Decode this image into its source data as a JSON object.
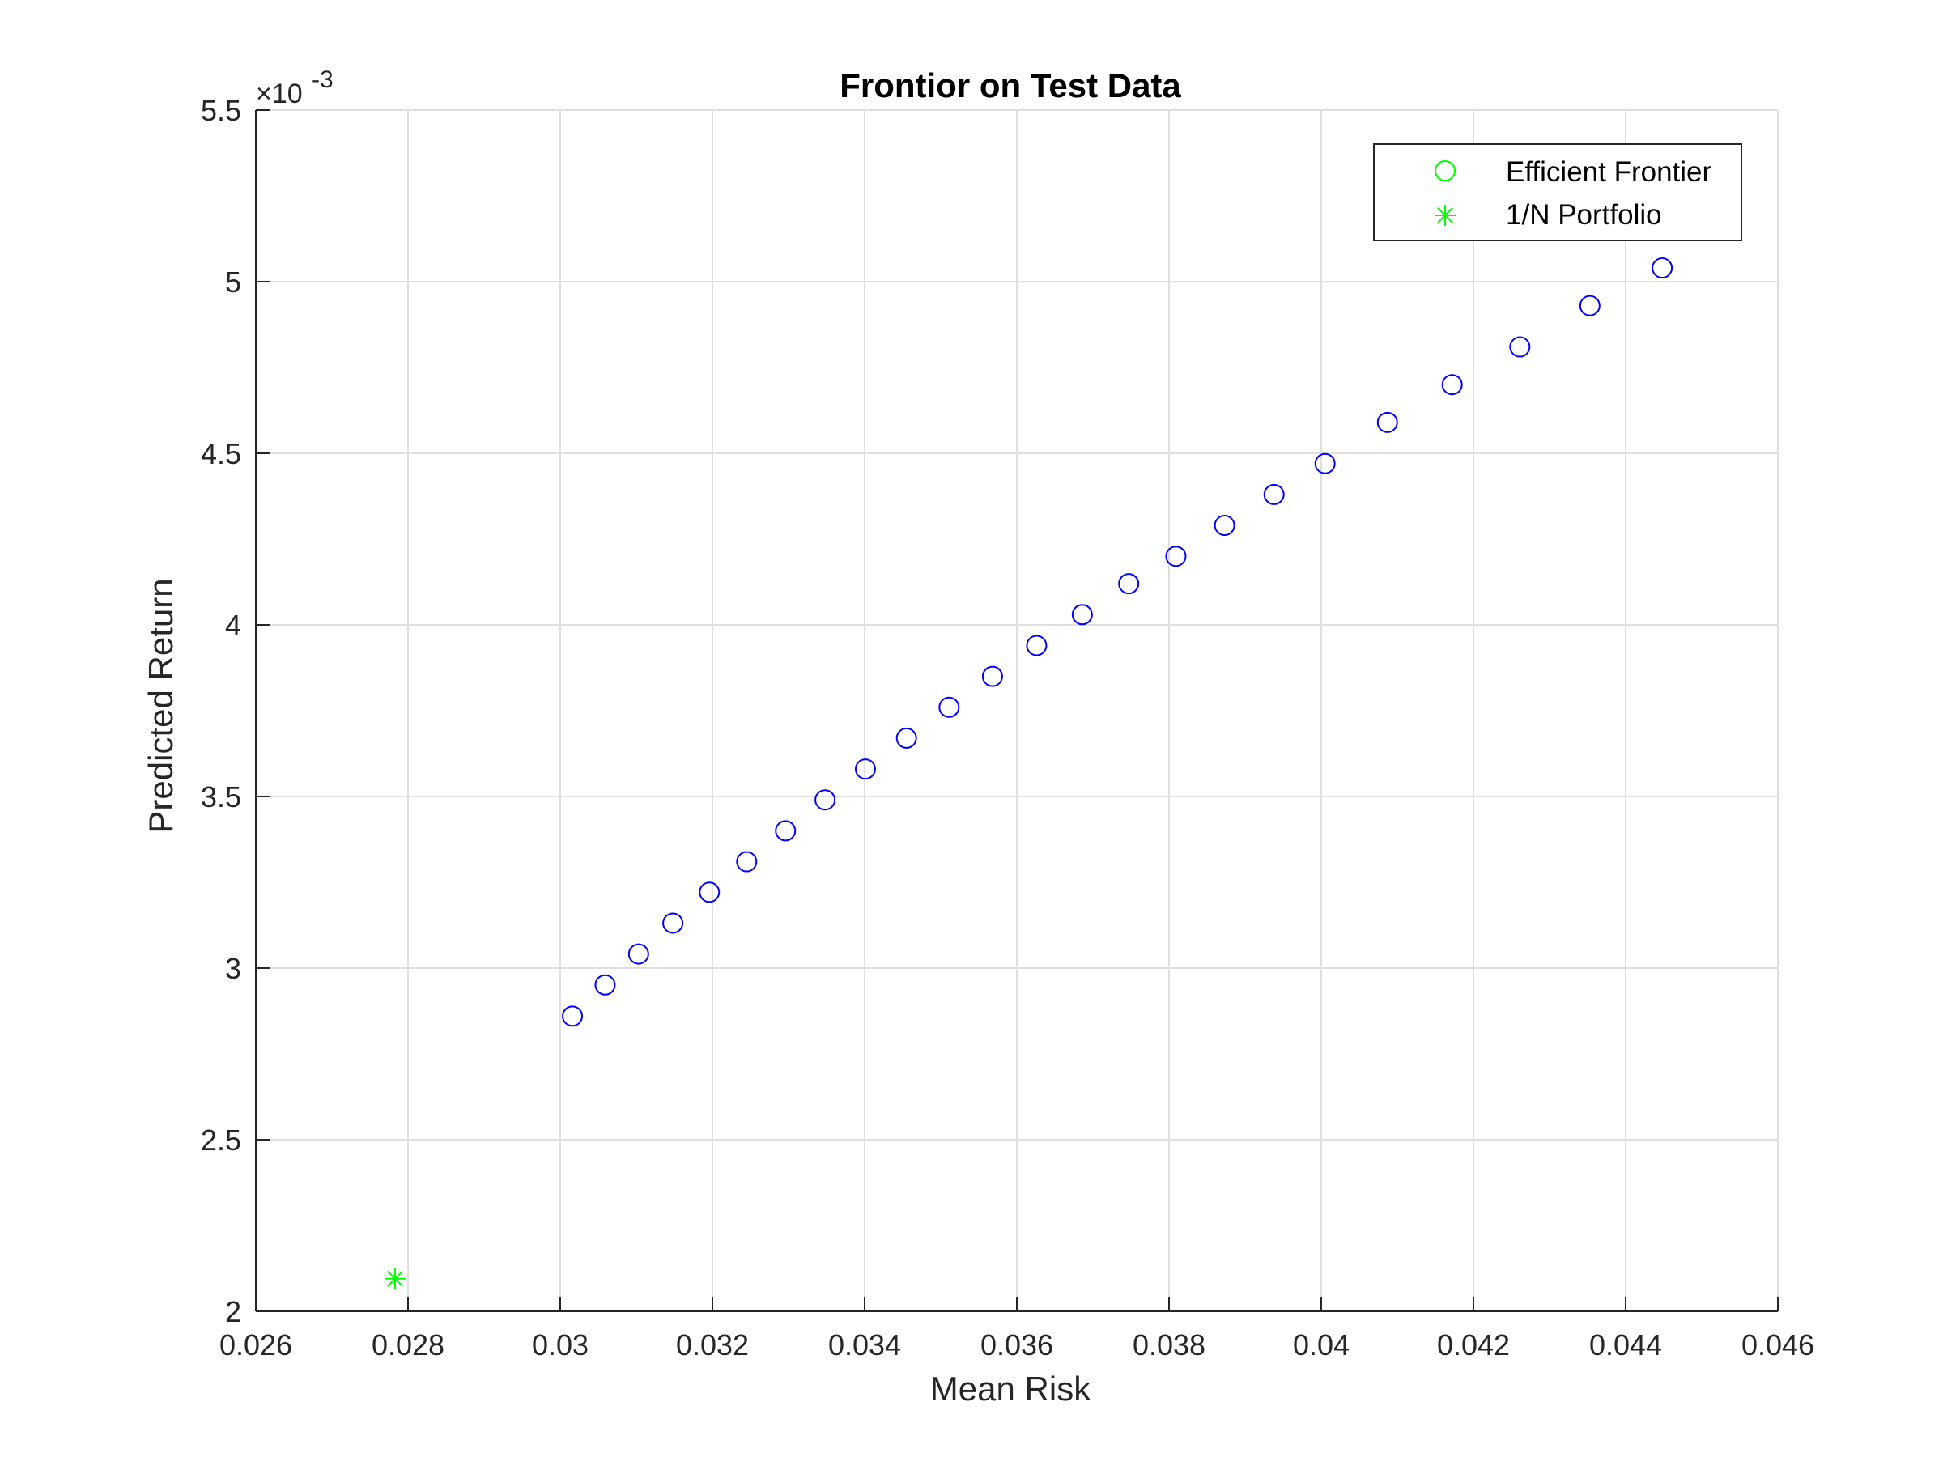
{
  "chart_data": {
    "type": "scatter",
    "title": "Frontior on Test Data",
    "xlabel": "Mean Risk",
    "ylabel": "Predicted Return",
    "xlim": [
      0.026,
      0.046
    ],
    "ylim": [
      0.002,
      0.0055
    ],
    "y_exponent_label": {
      "base": "×10",
      "power": "-3"
    },
    "x_ticks": [
      0.026,
      0.028,
      0.03,
      0.032,
      0.034,
      0.036,
      0.038,
      0.04,
      0.042,
      0.044,
      0.046
    ],
    "x_tick_labels": [
      "0.026",
      "0.028",
      "0.03",
      "0.032",
      "0.034",
      "0.036",
      "0.038",
      "0.04",
      "0.042",
      "0.044",
      "0.046"
    ],
    "y_ticks": [
      0.002,
      0.0025,
      0.003,
      0.0035,
      0.004,
      0.0045,
      0.005,
      0.0055
    ],
    "y_tick_labels": [
      "2",
      "2.5",
      "3",
      "3.5",
      "4",
      "4.5",
      "5",
      "5.5"
    ],
    "grid": true,
    "legend_position": "top-right",
    "series": [
      {
        "name": "Efficient Frontier",
        "marker": "circle",
        "color": "#0000ff",
        "legend_color": "#00ff00",
        "x": [
          0.03016,
          0.03059,
          0.03103,
          0.03148,
          0.03196,
          0.03245,
          0.03296,
          0.03348,
          0.03401,
          0.03455,
          0.03511,
          0.03568,
          0.03626,
          0.03686,
          0.03747,
          0.03809,
          0.03873,
          0.03938,
          0.04005,
          0.04087,
          0.04172,
          0.04261,
          0.04353,
          0.04448
        ],
        "y": [
          0.00286,
          0.002951,
          0.003041,
          0.003131,
          0.003221,
          0.00331,
          0.0034,
          0.00349,
          0.00358,
          0.00367,
          0.00376,
          0.00385,
          0.00394,
          0.00403,
          0.00412,
          0.0042,
          0.00429,
          0.00438,
          0.00447,
          0.00459,
          0.0047,
          0.00481,
          0.00493,
          0.00504
        ]
      },
      {
        "name": "1/N Portfolio",
        "marker": "asterisk",
        "color": "#00ff00",
        "legend_color": "#00ff00",
        "x": [
          0.02783
        ],
        "y": [
          0.002095
        ]
      }
    ]
  }
}
